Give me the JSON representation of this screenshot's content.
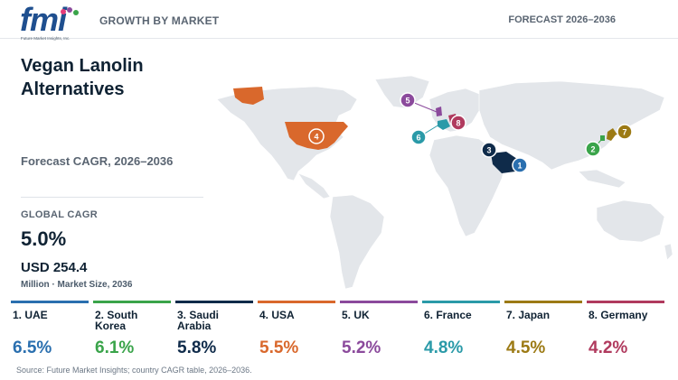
{
  "header": {
    "logo_text": "fmi",
    "logo_tagline": "Future Market Insights, Inc.",
    "section": "GROWTH BY MARKET",
    "forecast": "FORECAST 2026–2036"
  },
  "title": "Vegan Lanolin Alternatives",
  "subtitle": "Forecast CAGR, 2026–2036",
  "global": {
    "label": "GLOBAL CAGR",
    "value": "5.0%",
    "market_size_value": "USD 254.4",
    "market_size_label": "Million · Market Size, 2036"
  },
  "source": "Source: Future Market Insights; country CAGR table, 2026–2036.",
  "chart_data": {
    "type": "table",
    "title": "Vegan Lanolin Alternatives",
    "subtitle": "Forecast CAGR, 2026–2036",
    "categories": [
      "UAE",
      "South Korea",
      "Saudi Arabia",
      "USA",
      "UK",
      "France",
      "Japan",
      "Germany"
    ],
    "values": [
      6.5,
      6.1,
      5.8,
      5.5,
      5.2,
      4.8,
      4.5,
      4.2
    ],
    "series": [
      {
        "rank": 1,
        "name": "1. UAE",
        "country": "UAE",
        "value": 6.5,
        "label": "6.5%",
        "color": "#2a6faf"
      },
      {
        "rank": 2,
        "name": "2. South Korea",
        "country": "South Korea",
        "value": 6.1,
        "label": "6.1%",
        "color": "#3aa44a"
      },
      {
        "rank": 3,
        "name": "3. Saudi Arabia",
        "country": "Saudi Arabia",
        "value": 5.8,
        "label": "5.8%",
        "color": "#0f2b4a"
      },
      {
        "rank": 4,
        "name": "4. USA",
        "country": "USA",
        "value": 5.5,
        "label": "5.5%",
        "color": "#d9682c"
      },
      {
        "rank": 5,
        "name": "5. UK",
        "country": "UK",
        "value": 5.2,
        "label": "5.2%",
        "color": "#8b4a9c"
      },
      {
        "rank": 6,
        "name": "6. France",
        "country": "France",
        "value": 4.8,
        "label": "4.8%",
        "color": "#2a9aa8"
      },
      {
        "rank": 7,
        "name": "7. Japan",
        "country": "Japan",
        "value": 4.5,
        "label": "4.5%",
        "color": "#9c7a14"
      },
      {
        "rank": 8,
        "name": "8. Germany",
        "country": "Germany",
        "value": 4.2,
        "label": "4.2%",
        "color": "#b03a5e"
      }
    ],
    "global_cagr": 5.0,
    "market_size_2036_usd_million": 254.4
  }
}
